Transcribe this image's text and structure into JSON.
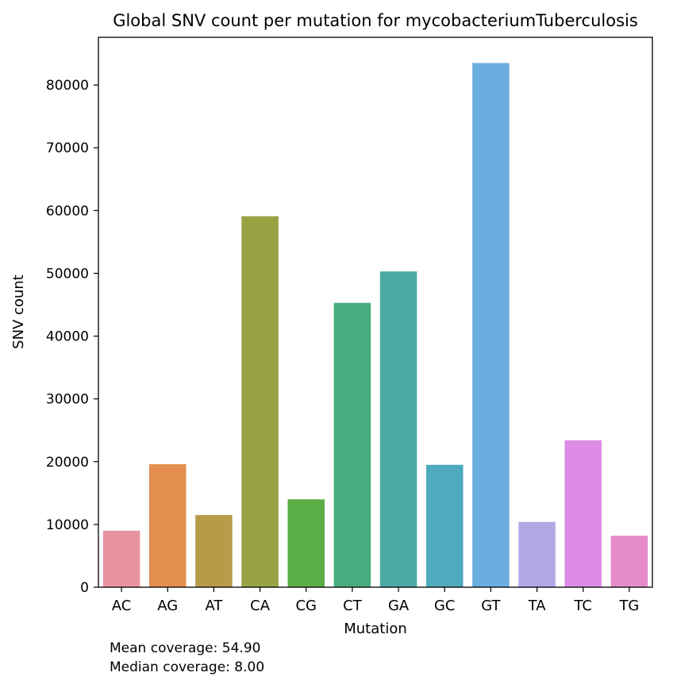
{
  "chart_data": {
    "type": "bar",
    "title": "Global SNV count per mutation for mycobacteriumTuberculosis",
    "xlabel": "Mutation",
    "ylabel": "SNV count",
    "categories": [
      "AC",
      "AG",
      "AT",
      "CA",
      "CG",
      "CT",
      "GA",
      "GC",
      "GT",
      "TA",
      "TC",
      "TG"
    ],
    "values": [
      9000,
      19600,
      11500,
      59100,
      14000,
      45300,
      50300,
      19500,
      83500,
      10400,
      23400,
      8200
    ],
    "colors": [
      "#e8949f",
      "#e38e4f",
      "#b69b49",
      "#98a345",
      "#5bad45",
      "#47ad7e",
      "#4aaaa3",
      "#4eaabd",
      "#6aadde",
      "#b4a7e6",
      "#dd8ce6",
      "#e58cc8"
    ],
    "ylim": [
      0,
      87600
    ],
    "yticks": [
      0,
      10000,
      20000,
      30000,
      40000,
      50000,
      60000,
      70000,
      80000
    ],
    "grid": false,
    "legend": "none"
  },
  "footnotes": {
    "mean": "Mean coverage: 54.90",
    "median": "Median coverage: 8.00"
  }
}
